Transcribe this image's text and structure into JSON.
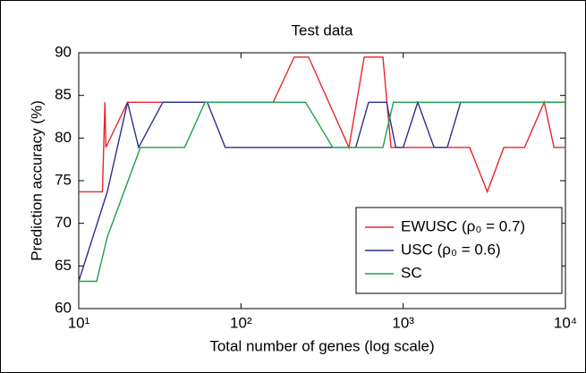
{
  "chart_data": {
    "type": "line",
    "title": "Test data",
    "xlabel": "Total number of genes (log scale)",
    "ylabel": "Prediction accuracy (%)",
    "xscale": "log",
    "xlim": [
      10,
      10000
    ],
    "ylim": [
      60,
      90
    ],
    "xticks": [
      {
        "value": 10,
        "label": "10¹"
      },
      {
        "value": 100,
        "label": "10²"
      },
      {
        "value": 1000,
        "label": "10³"
      },
      {
        "value": 10000,
        "label": "10⁴"
      }
    ],
    "yticks": [
      60,
      65,
      70,
      75,
      80,
      85,
      90
    ],
    "legend": "lower right",
    "series": [
      {
        "name": "EWUSC (ρ₀ = 0.7)",
        "color": "#e8262a",
        "x": [
          10,
          14,
          14.5,
          14.7,
          20,
          158,
          213,
          261,
          463,
          575,
          750,
          841,
          2570,
          3300,
          4170,
          5600,
          7400,
          8500,
          10000
        ],
        "values": [
          73.7,
          73.7,
          84.2,
          78.9,
          84.2,
          84.2,
          89.5,
          89.5,
          78.9,
          89.5,
          89.5,
          78.9,
          78.9,
          73.7,
          78.9,
          78.9,
          84.2,
          78.9,
          78.9
        ]
      },
      {
        "name": "USC (ρ₀ = 0.6)",
        "color": "#2b2f8f",
        "x": [
          10,
          15,
          20,
          23.4,
          33,
          62,
          80,
          510,
          612,
          790,
          900,
          1000,
          1230,
          1550,
          1870,
          2260,
          10000
        ],
        "values": [
          63.2,
          73.7,
          84.2,
          78.9,
          84.2,
          84.2,
          78.9,
          78.9,
          84.2,
          84.2,
          78.9,
          78.9,
          84.2,
          78.9,
          78.9,
          84.2,
          84.2
        ]
      },
      {
        "name": "SC",
        "color": "#1aa34a",
        "x": [
          10,
          12.9,
          15,
          24,
          45,
          60,
          250,
          368,
          750,
          870,
          10000
        ],
        "values": [
          63.2,
          63.2,
          68.4,
          78.9,
          78.9,
          84.2,
          84.2,
          78.9,
          78.9,
          84.2,
          84.2
        ]
      }
    ]
  }
}
